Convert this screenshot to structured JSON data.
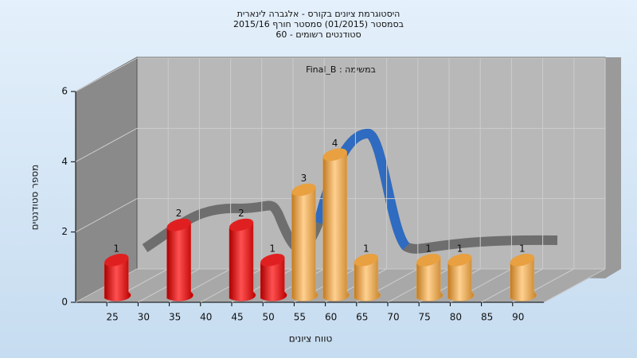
{
  "chart_data": {
    "type": "bar3d",
    "title": "היסטוגרמת ציונים בקורס - אלגברה לינארית",
    "subtitle": "בסמסטר (01/2015) סמסטר חורף 2015/16",
    "subtitle2": "סטודנטים רשומים - 60",
    "annotation": "Final_B : במשימה",
    "x_label": "טווח ציונים",
    "y_label": "מספר סטודנטים",
    "categories": [
      "25",
      "30",
      "35",
      "40",
      "45",
      "50",
      "55",
      "60",
      "65",
      "70",
      "75",
      "80",
      "85",
      "90"
    ],
    "values": [
      1,
      0,
      2,
      0,
      2,
      1,
      3,
      4,
      1,
      0,
      1,
      1,
      0,
      1
    ],
    "colors": [
      "#e02020",
      "#e02020",
      "#e02020",
      "#e02020",
      "#e02020",
      "#e02020",
      "#e8a040",
      "#e8a040",
      "#e8a040",
      "#e8a040",
      "#e8a040",
      "#e8a040",
      "#e8a040",
      "#e8a040"
    ],
    "ylim": [
      0,
      6
    ],
    "yticks": [
      0,
      2,
      4,
      6
    ],
    "grid": true
  }
}
